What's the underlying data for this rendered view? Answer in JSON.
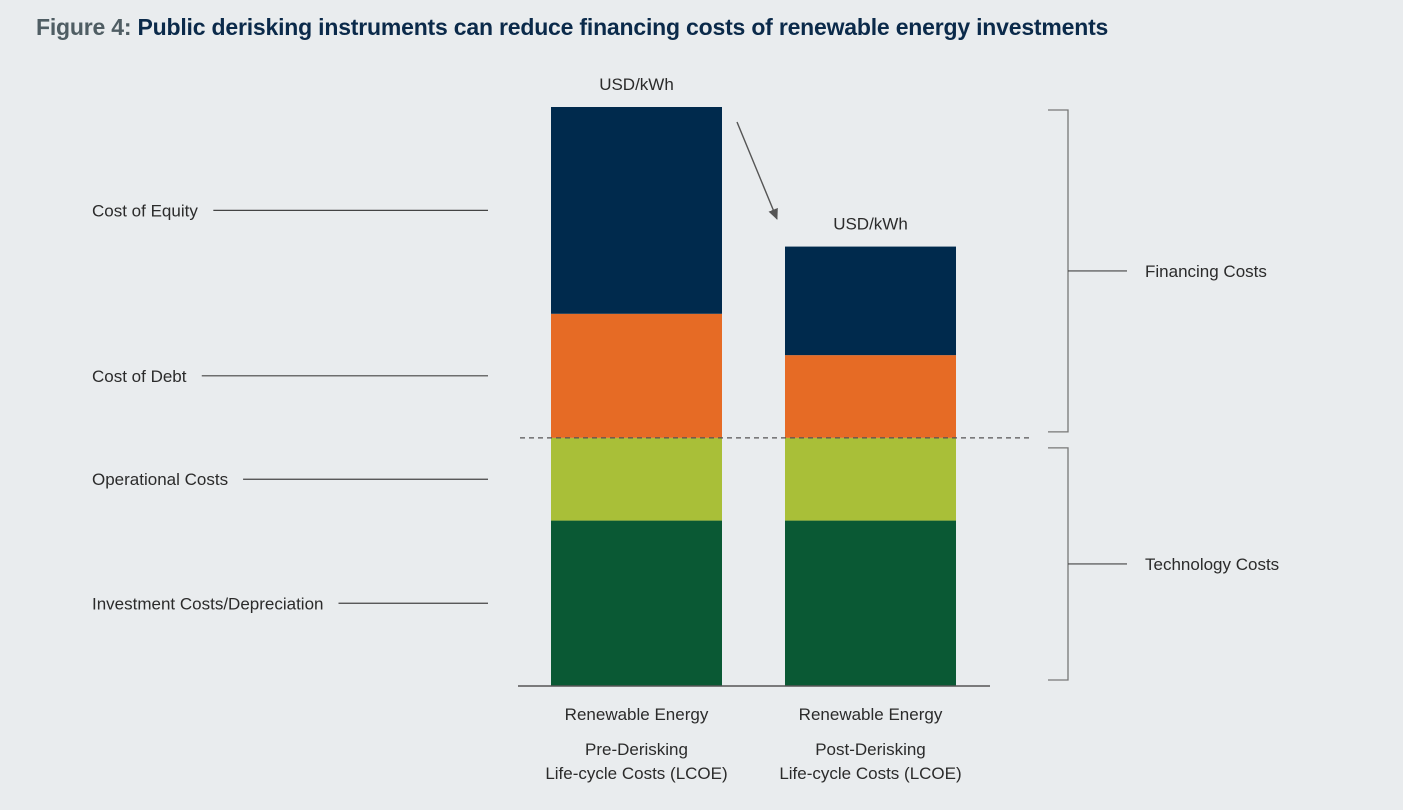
{
  "title": {
    "prefix": "Figure 4:",
    "main": "Public derisking instruments can reduce financing costs of renewable energy investments"
  },
  "chart_data": {
    "type": "bar",
    "stacked": true,
    "categories": [
      {
        "line1": "Renewable Energy",
        "line2": "Pre-Derisking",
        "line3": "Life-cycle Costs (LCOE)"
      },
      {
        "line1": "Renewable Energy",
        "line2": "Post-Derisking",
        "line3": "Life-cycle Costs (LCOE)"
      }
    ],
    "top_labels": [
      "USD/kWh",
      "USD/kWh"
    ],
    "series": [
      {
        "name": "Investment Costs/Depreciation",
        "values": [
          3.2,
          3.2
        ],
        "color": "#0a5934"
      },
      {
        "name": "Operational Costs",
        "values": [
          1.6,
          1.6
        ],
        "color": "#a9bf38"
      },
      {
        "name": "Cost of Debt",
        "values": [
          2.4,
          1.6
        ],
        "color": "#e66b25"
      },
      {
        "name": "Cost of Equity",
        "values": [
          4.0,
          2.1
        ],
        "color": "#002a4d"
      }
    ],
    "groups": [
      {
        "label": "Technology Costs",
        "series": [
          "Investment Costs/Depreciation",
          "Operational Costs"
        ]
      },
      {
        "label": "Financing Costs",
        "series": [
          "Cost of Debt",
          "Cost of Equity"
        ]
      }
    ],
    "ylim": [
      0,
      11.2
    ],
    "xlabel": "",
    "ylabel": "",
    "grid": false,
    "legend": "left"
  }
}
